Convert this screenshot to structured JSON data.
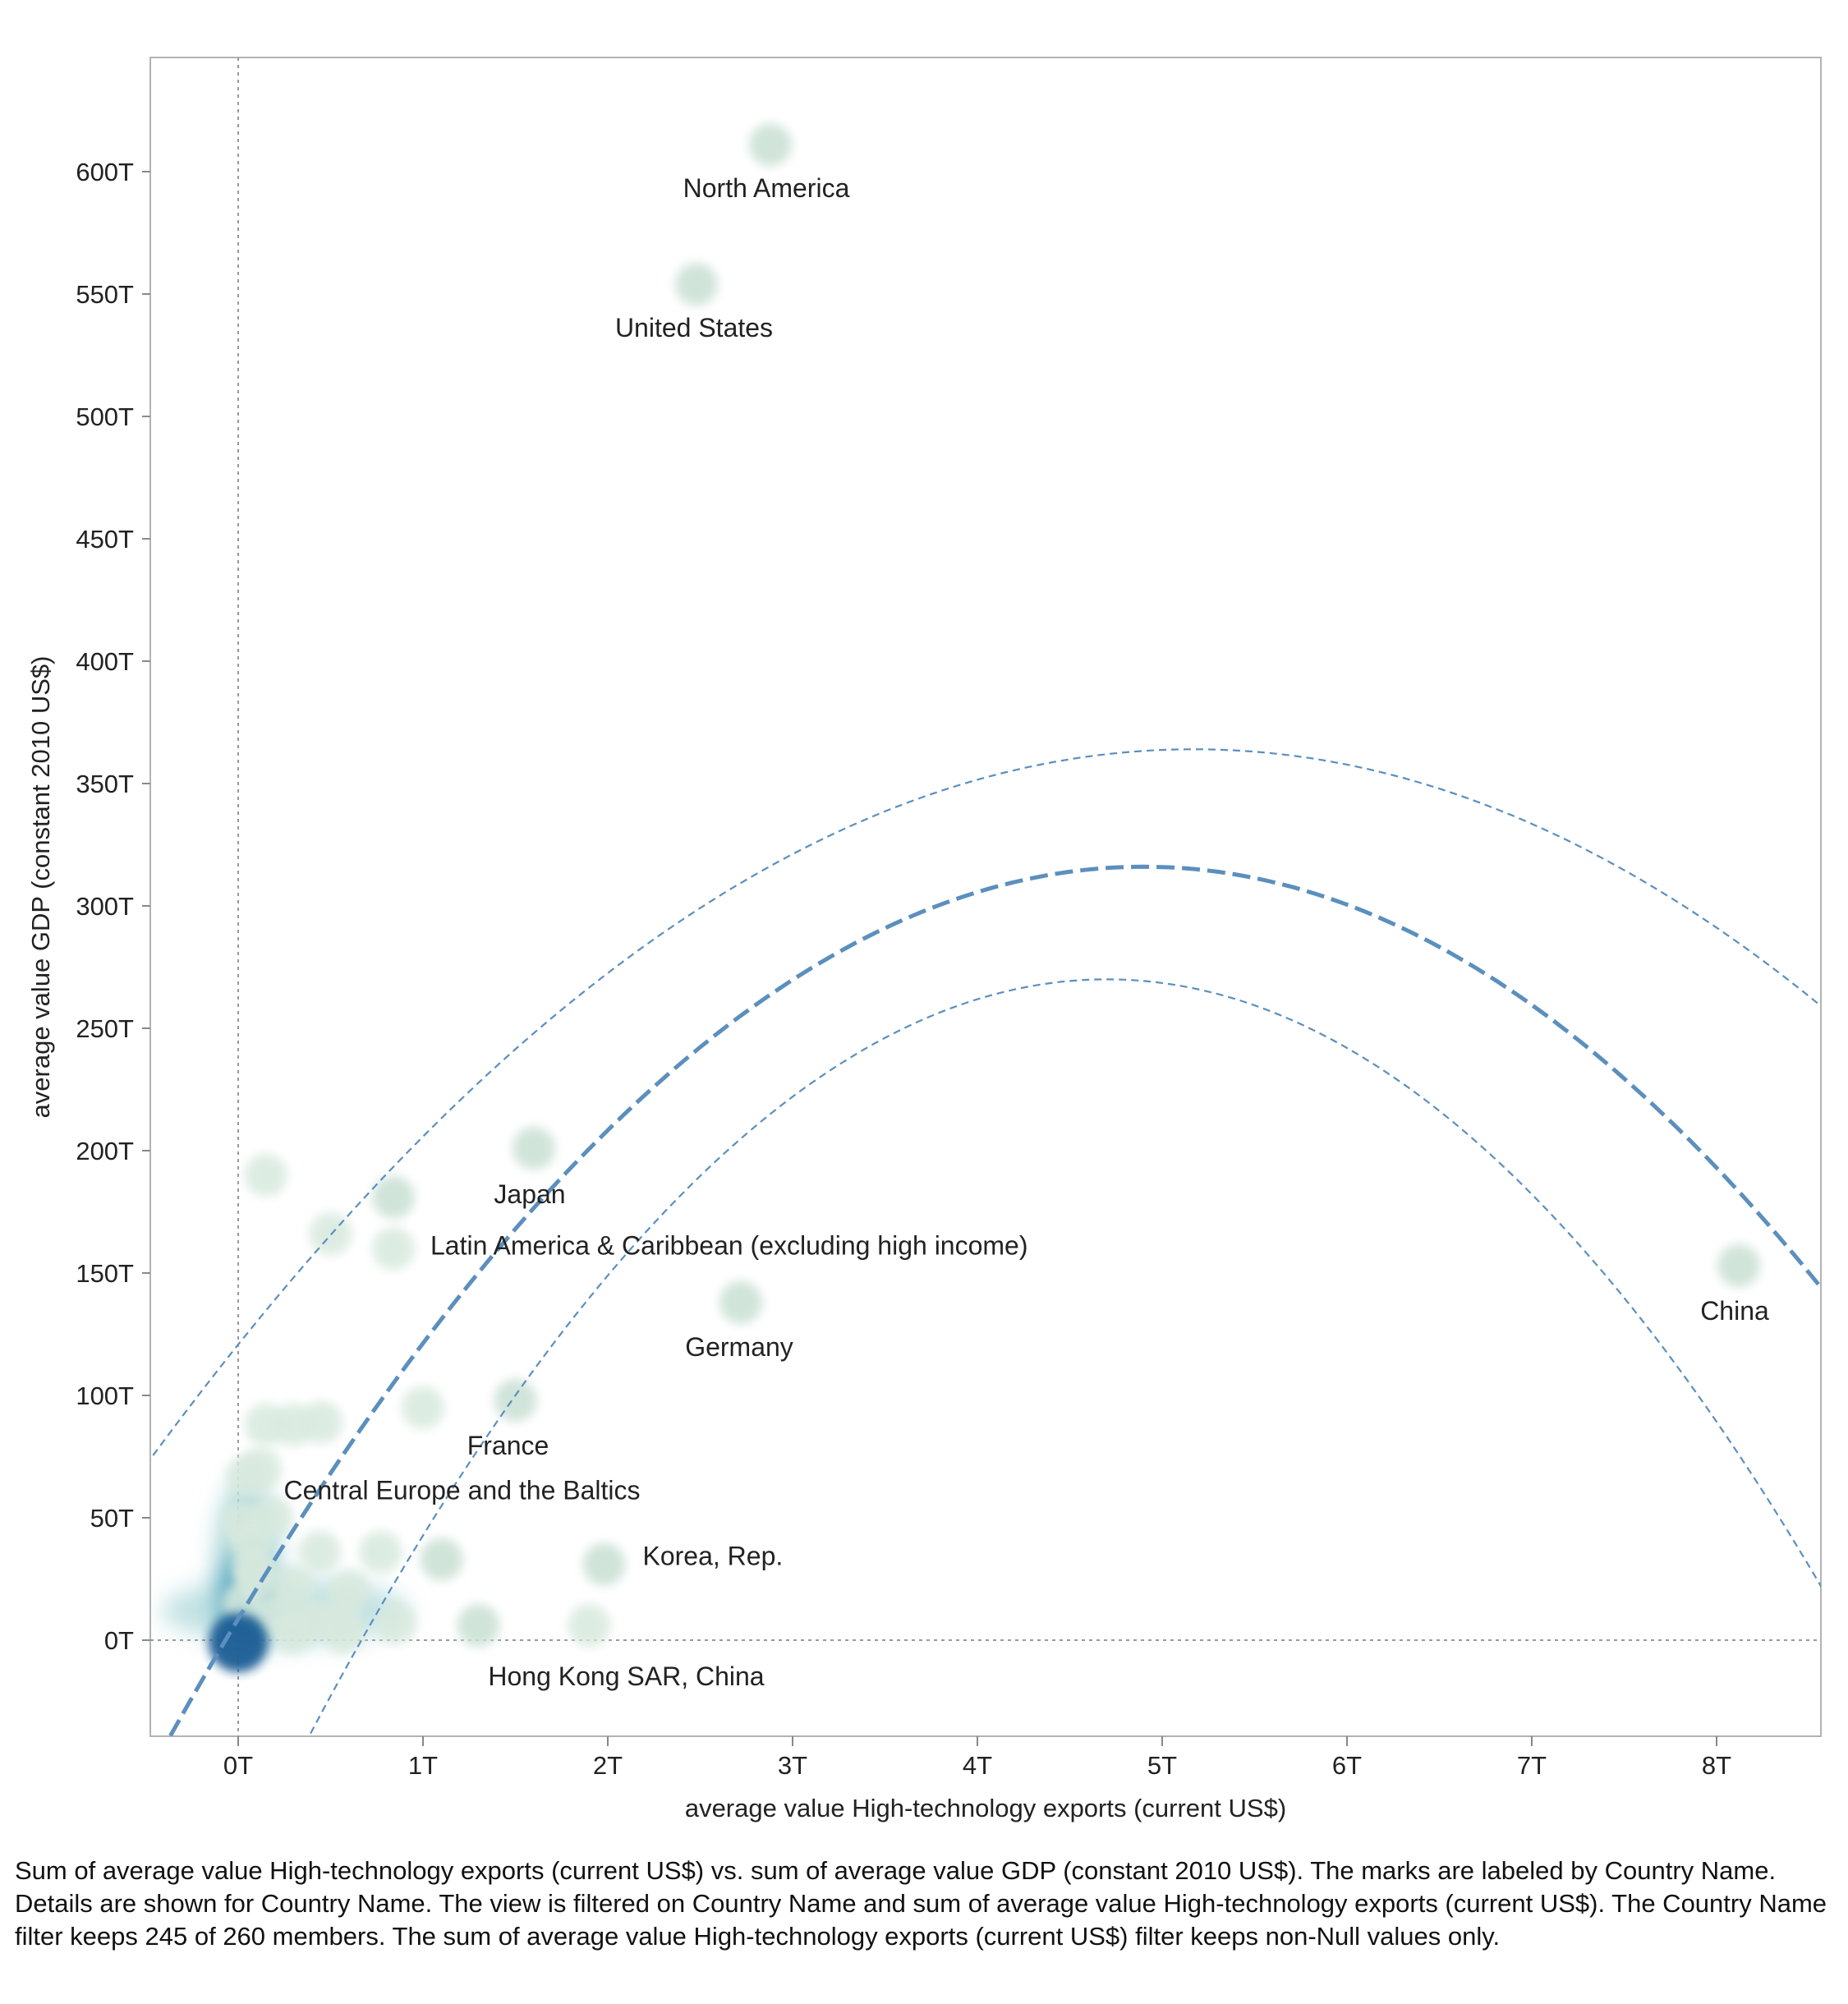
{
  "chart_data": {
    "type": "scatter",
    "xlabel": "average value High-technology exports (current US$)",
    "ylabel": "average value GDP (constant 2010 US$)",
    "x_unit": "T",
    "y_unit": "T",
    "xlim": [
      -0.45,
      8.6
    ],
    "ylim": [
      -36,
      640
    ],
    "x_ticks": [
      "0T",
      "1T",
      "2T",
      "3T",
      "4T",
      "5T",
      "6T",
      "7T",
      "8T"
    ],
    "y_ticks": [
      "0T",
      "50T",
      "100T",
      "150T",
      "200T",
      "250T",
      "300T",
      "350T",
      "400T",
      "450T",
      "500T",
      "550T",
      "600T"
    ],
    "zero_reference_lines": true,
    "grid": false,
    "mark_color": "#cfe3d8",
    "density_colors": [
      "#d8e9de",
      "#8fc9cc",
      "#3b97bb",
      "#1f5d95"
    ],
    "labeled_points": [
      {
        "label": "North America",
        "x": 2.88,
        "y": 611
      },
      {
        "label": "United States",
        "x": 2.48,
        "y": 554
      },
      {
        "label": "Japan",
        "x": 1.6,
        "y": 201
      },
      {
        "label": "Latin America & Caribbean (excluding high income)",
        "x": 0.84,
        "y": 181
      },
      {
        "label": "China",
        "x": 8.12,
        "y": 153
      },
      {
        "label": "Germany",
        "x": 2.72,
        "y": 138
      },
      {
        "label": "France",
        "x": 1.5,
        "y": 98
      },
      {
        "label": "Central Europe and the Baltics",
        "x": 1.1,
        "y": 33
      },
      {
        "label": "Korea, Rep.",
        "x": 1.98,
        "y": 31
      },
      {
        "label": "Hong Kong SAR, China",
        "x": 1.3,
        "y": 6
      }
    ],
    "other_points": [
      {
        "x": 0.15,
        "y": 190
      },
      {
        "x": 0.5,
        "y": 166
      },
      {
        "x": 0.84,
        "y": 160
      },
      {
        "x": 1.0,
        "y": 95
      },
      {
        "x": 0.15,
        "y": 88
      },
      {
        "x": 0.3,
        "y": 88
      },
      {
        "x": 0.45,
        "y": 89
      },
      {
        "x": 0.05,
        "y": 67
      },
      {
        "x": 0.12,
        "y": 70
      },
      {
        "x": 0.02,
        "y": 48
      },
      {
        "x": 0.18,
        "y": 50
      },
      {
        "x": 0.07,
        "y": 40
      },
      {
        "x": 0.44,
        "y": 36
      },
      {
        "x": 0.77,
        "y": 36
      },
      {
        "x": 0.3,
        "y": 22
      },
      {
        "x": 0.6,
        "y": 20
      },
      {
        "x": 0.2,
        "y": 10
      },
      {
        "x": 0.4,
        "y": 8
      },
      {
        "x": 0.55,
        "y": 9
      },
      {
        "x": 0.85,
        "y": 7
      },
      {
        "x": 1.9,
        "y": 6
      },
      {
        "x": 0.57,
        "y": 3
      },
      {
        "x": 0.3,
        "y": 3
      },
      {
        "x": 0.1,
        "y": 25
      },
      {
        "x": 0.03,
        "y": 15
      },
      {
        "x": 0.08,
        "y": 30
      }
    ],
    "trend_line": {
      "type": "polynomial",
      "degree": 2,
      "style": "dashed",
      "color": "#5b8fbe",
      "fit": {
        "vertex_x": 4.9,
        "vertex_y": 316,
        "a": -12.8
      },
      "upper_band": {
        "vertex_x": 5.17,
        "vertex_y": 364,
        "a": -9.1
      },
      "lower_band": {
        "vertex_x": 4.7,
        "vertex_y": 270,
        "a": -16.6
      }
    }
  },
  "caption": "Sum of average value High-technology exports (current US$) vs. sum of average value GDP (constant 2010 US$).  The marks are labeled by Country Name.  Details are shown for Country Name. The view is filtered on Country Name and sum of average value High-technology exports (current US$). The Country Name filter keeps 245 of 260 members. The sum of average value High-technology exports (current US$) filter keeps non-Null values only."
}
